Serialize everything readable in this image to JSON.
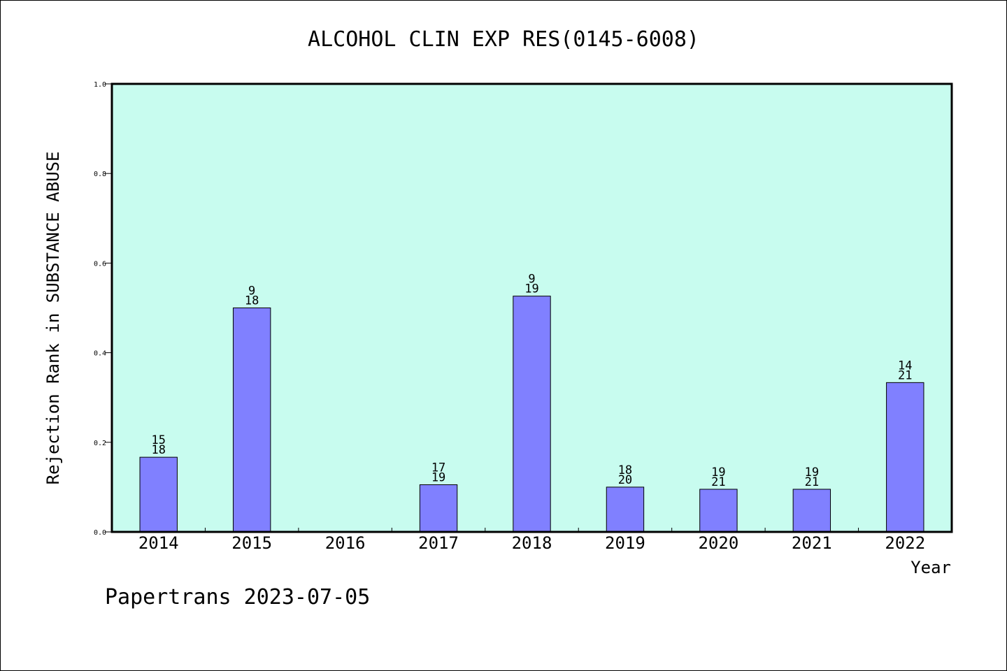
{
  "chart_data": {
    "type": "bar",
    "title": "ALCOHOL CLIN EXP RES(0145-6008)",
    "xlabel": "Year",
    "ylabel": "Rejection Rank in SUBSTANCE ABUSE",
    "ylim": [
      0,
      1.0
    ],
    "yticks": [
      "0.0",
      "0.2",
      "0.4",
      "0.6",
      "0.8",
      "1.0"
    ],
    "categories": [
      "2014",
      "2015",
      "2016",
      "2017",
      "2018",
      "2019",
      "2020",
      "2021",
      "2022"
    ],
    "values": [
      0.1667,
      0.5,
      null,
      0.1053,
      0.5263,
      0.1,
      0.0952,
      0.0952,
      0.3333
    ],
    "label_top": [
      "15",
      "9",
      null,
      "17",
      "9",
      "18",
      "19",
      "19",
      "14"
    ],
    "label_bottom": [
      "18",
      "18",
      null,
      "19",
      "19",
      "20",
      "21",
      "21",
      "21"
    ],
    "grid": false,
    "colors": {
      "plot_background": "#c8fcef",
      "bar_fill": "#8080ff",
      "bar_stroke": "#000000"
    }
  },
  "footer": "Papertrans 2023-07-05"
}
